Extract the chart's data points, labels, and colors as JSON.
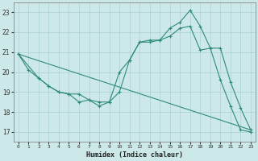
{
  "line1_x": [
    0,
    1,
    2,
    3,
    4,
    5,
    6,
    7,
    8,
    9,
    10,
    11,
    12,
    13,
    14,
    15,
    16,
    17,
    18,
    19,
    20,
    21,
    22,
    23
  ],
  "line1_y": [
    20.9,
    20.1,
    19.7,
    19.3,
    19.0,
    18.9,
    18.5,
    18.6,
    18.3,
    18.5,
    19.0,
    20.6,
    21.5,
    21.6,
    21.6,
    22.2,
    22.5,
    23.1,
    22.3,
    21.2,
    19.6,
    18.3,
    17.1,
    17.0
  ],
  "line2_x": [
    0,
    2,
    3,
    4,
    5,
    6,
    7,
    8,
    9,
    10,
    11,
    12,
    13,
    14,
    15,
    16,
    17,
    18,
    19,
    20,
    21,
    22,
    23
  ],
  "line2_y": [
    20.9,
    19.7,
    19.3,
    19.0,
    18.9,
    18.9,
    18.6,
    18.5,
    18.5,
    20.0,
    20.6,
    21.5,
    21.5,
    21.6,
    21.8,
    22.2,
    22.3,
    21.1,
    21.2,
    21.2,
    19.5,
    18.2,
    17.1
  ],
  "line3_x": [
    0,
    23
  ],
  "line3_y": [
    20.9,
    17.1
  ],
  "color": "#2e8b7a",
  "bg_color": "#cce8e8",
  "grid_color": "#aad0d0",
  "xlabel": "Humidex (Indice chaleur)",
  "xlim": [
    -0.5,
    23.5
  ],
  "ylim": [
    16.5,
    23.5
  ],
  "yticks": [
    17,
    18,
    19,
    20,
    21,
    22,
    23
  ],
  "xticks": [
    0,
    1,
    2,
    3,
    4,
    5,
    6,
    7,
    8,
    9,
    10,
    11,
    12,
    13,
    14,
    15,
    16,
    17,
    18,
    19,
    20,
    21,
    22,
    23
  ]
}
